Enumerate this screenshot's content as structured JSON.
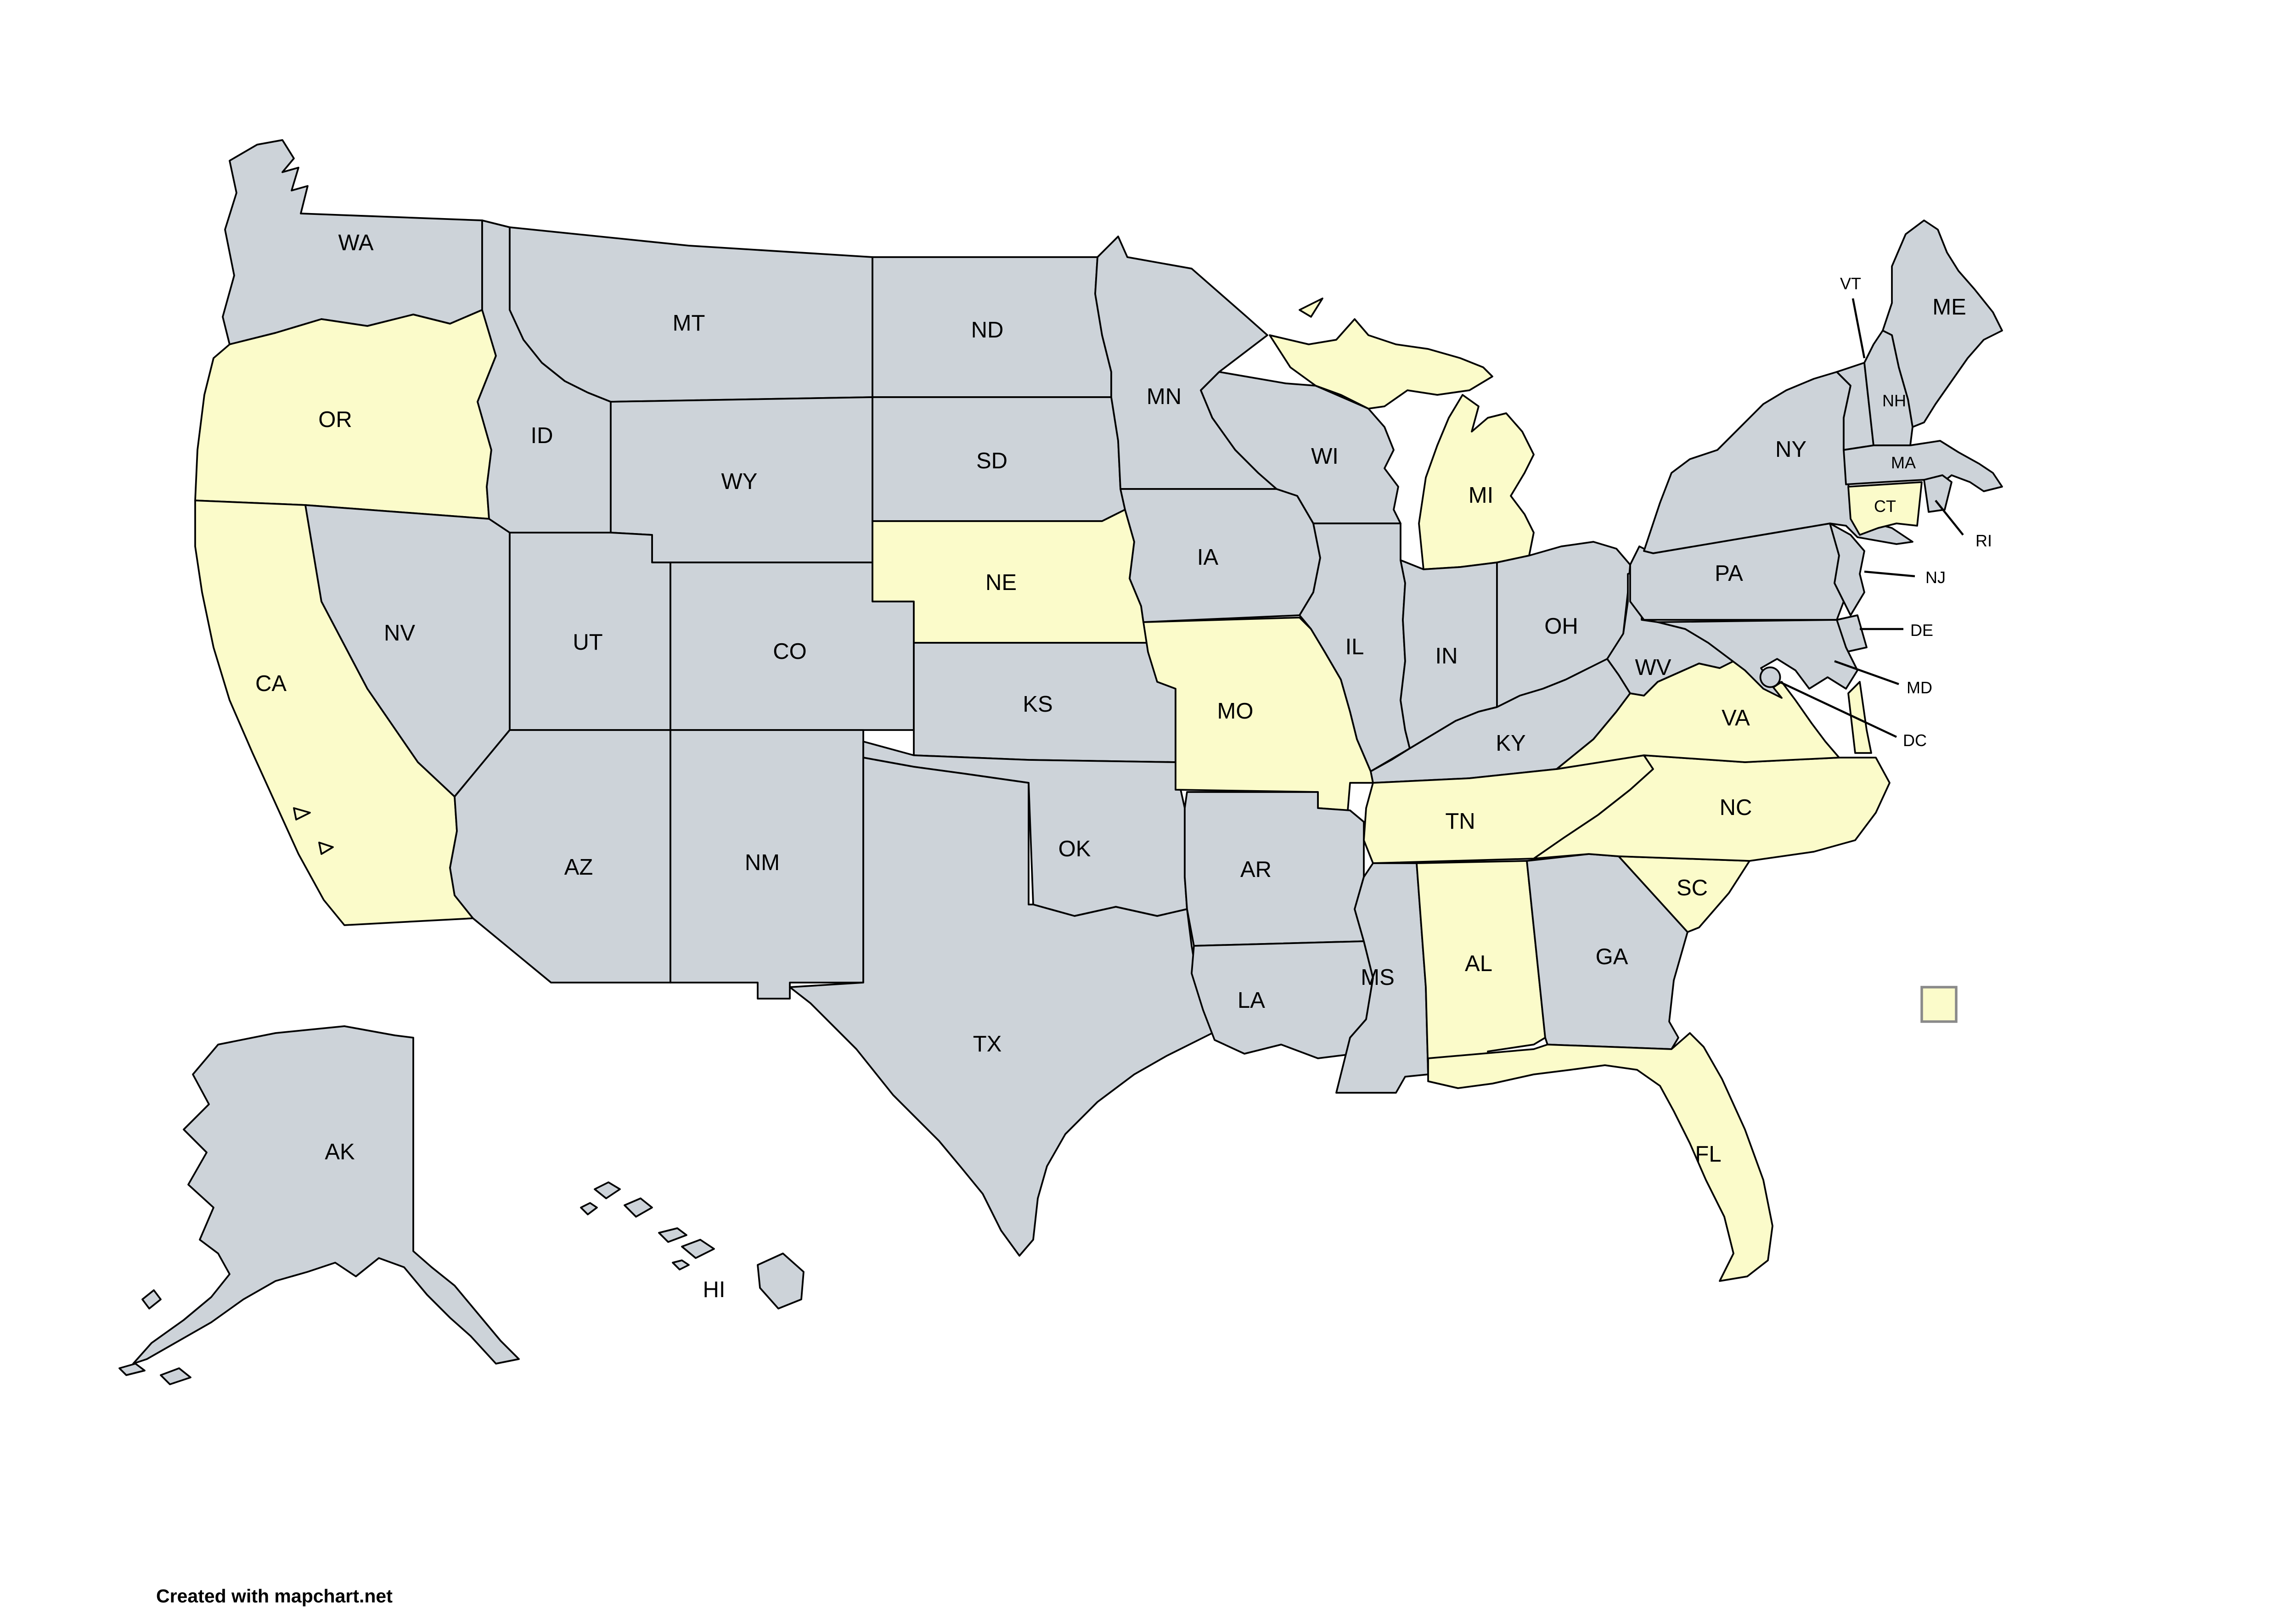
{
  "attribution": "Created with mapchart.net",
  "colors": {
    "highlight": "#FBFBCA",
    "default": "#CDD3D9",
    "border": "#000000",
    "background": "#FFFFFF",
    "legend_border": "#8A8A8A"
  },
  "legend": {
    "swatch_color_key": "highlight",
    "label": ""
  },
  "states": [
    {
      "abbr": "WA",
      "highlighted": false,
      "label_style": "main"
    },
    {
      "abbr": "OR",
      "highlighted": true,
      "label_style": "main"
    },
    {
      "abbr": "CA",
      "highlighted": true,
      "label_style": "main"
    },
    {
      "abbr": "NV",
      "highlighted": false,
      "label_style": "main"
    },
    {
      "abbr": "ID",
      "highlighted": false,
      "label_style": "main"
    },
    {
      "abbr": "MT",
      "highlighted": false,
      "label_style": "main"
    },
    {
      "abbr": "WY",
      "highlighted": false,
      "label_style": "main"
    },
    {
      "abbr": "UT",
      "highlighted": false,
      "label_style": "main"
    },
    {
      "abbr": "CO",
      "highlighted": false,
      "label_style": "main"
    },
    {
      "abbr": "AZ",
      "highlighted": false,
      "label_style": "main"
    },
    {
      "abbr": "NM",
      "highlighted": false,
      "label_style": "main"
    },
    {
      "abbr": "ND",
      "highlighted": false,
      "label_style": "main"
    },
    {
      "abbr": "SD",
      "highlighted": false,
      "label_style": "main"
    },
    {
      "abbr": "NE",
      "highlighted": true,
      "label_style": "main"
    },
    {
      "abbr": "KS",
      "highlighted": false,
      "label_style": "main"
    },
    {
      "abbr": "OK",
      "highlighted": false,
      "label_style": "main"
    },
    {
      "abbr": "TX",
      "highlighted": false,
      "label_style": "main"
    },
    {
      "abbr": "MN",
      "highlighted": false,
      "label_style": "main"
    },
    {
      "abbr": "IA",
      "highlighted": false,
      "label_style": "main"
    },
    {
      "abbr": "MO",
      "highlighted": true,
      "label_style": "main"
    },
    {
      "abbr": "AR",
      "highlighted": false,
      "label_style": "main"
    },
    {
      "abbr": "LA",
      "highlighted": false,
      "label_style": "main"
    },
    {
      "abbr": "WI",
      "highlighted": false,
      "label_style": "main"
    },
    {
      "abbr": "IL",
      "highlighted": false,
      "label_style": "main"
    },
    {
      "abbr": "MI",
      "highlighted": true,
      "label_style": "main"
    },
    {
      "abbr": "IN",
      "highlighted": false,
      "label_style": "main"
    },
    {
      "abbr": "OH",
      "highlighted": false,
      "label_style": "main"
    },
    {
      "abbr": "KY",
      "highlighted": false,
      "label_style": "main"
    },
    {
      "abbr": "TN",
      "highlighted": true,
      "label_style": "main"
    },
    {
      "abbr": "MS",
      "highlighted": false,
      "label_style": "main"
    },
    {
      "abbr": "AL",
      "highlighted": true,
      "label_style": "main"
    },
    {
      "abbr": "GA",
      "highlighted": false,
      "label_style": "main"
    },
    {
      "abbr": "FL",
      "highlighted": true,
      "label_style": "main"
    },
    {
      "abbr": "SC",
      "highlighted": true,
      "label_style": "main"
    },
    {
      "abbr": "NC",
      "highlighted": true,
      "label_style": "main"
    },
    {
      "abbr": "VA",
      "highlighted": true,
      "label_style": "main"
    },
    {
      "abbr": "WV",
      "highlighted": false,
      "label_style": "main"
    },
    {
      "abbr": "PA",
      "highlighted": false,
      "label_style": "main"
    },
    {
      "abbr": "NY",
      "highlighted": false,
      "label_style": "main"
    },
    {
      "abbr": "ME",
      "highlighted": false,
      "label_style": "main"
    },
    {
      "abbr": "VT",
      "highlighted": false,
      "label_style": "callout"
    },
    {
      "abbr": "NH",
      "highlighted": false,
      "label_style": "small"
    },
    {
      "abbr": "MA",
      "highlighted": false,
      "label_style": "small"
    },
    {
      "abbr": "CT",
      "highlighted": true,
      "label_style": "small"
    },
    {
      "abbr": "RI",
      "highlighted": false,
      "label_style": "callout"
    },
    {
      "abbr": "NJ",
      "highlighted": false,
      "label_style": "callout"
    },
    {
      "abbr": "DE",
      "highlighted": false,
      "label_style": "callout"
    },
    {
      "abbr": "MD",
      "highlighted": false,
      "label_style": "callout"
    },
    {
      "abbr": "DC",
      "highlighted": false,
      "label_style": "callout"
    },
    {
      "abbr": "AK",
      "highlighted": false,
      "label_style": "main"
    },
    {
      "abbr": "HI",
      "highlighted": false,
      "label_style": "main"
    }
  ]
}
